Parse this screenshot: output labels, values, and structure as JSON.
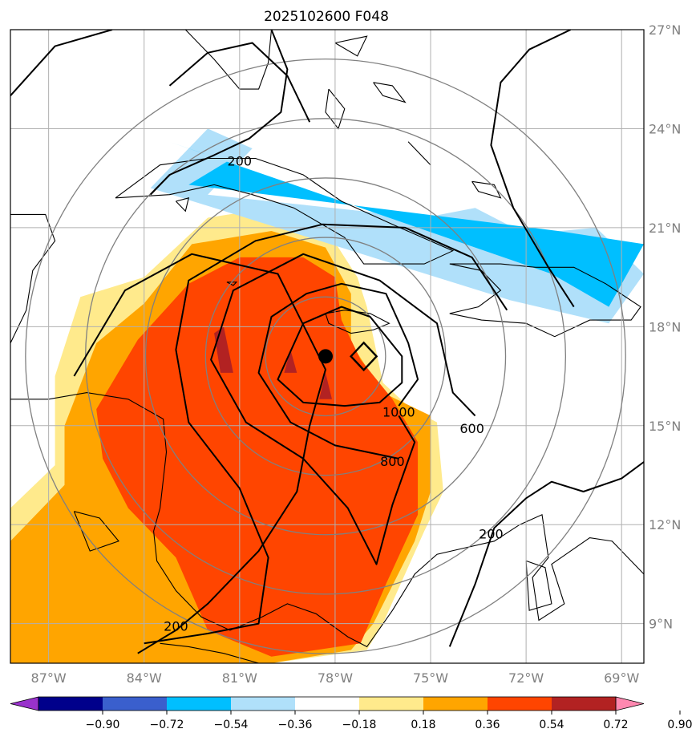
{
  "figure": {
    "title": "2025102600 F048"
  },
  "chart_data": {
    "type": "map-contour",
    "title": "2025102600 F048",
    "lon_range": [
      -88.2,
      -68.3
    ],
    "lat_range": [
      7.8,
      27.0
    ],
    "lon_ticks": [
      {
        "value": -87,
        "label": "87°W"
      },
      {
        "value": -84,
        "label": "84°W"
      },
      {
        "value": -81,
        "label": "81°W"
      },
      {
        "value": -78,
        "label": "78°W"
      },
      {
        "value": -75,
        "label": "75°W"
      },
      {
        "value": -72,
        "label": "72°W"
      },
      {
        "value": -69,
        "label": "69°W"
      }
    ],
    "lat_ticks": [
      {
        "value": 27,
        "label": "27°N"
      },
      {
        "value": 24,
        "label": "24°N"
      },
      {
        "value": 21,
        "label": "21°N"
      },
      {
        "value": 18,
        "label": "18°N"
      },
      {
        "value": 15,
        "label": "15°N"
      },
      {
        "value": 12,
        "label": "12°N"
      },
      {
        "value": 9,
        "label": "9°N"
      }
    ],
    "colorbar": {
      "levels": [
        -0.9,
        -0.72,
        -0.54,
        -0.36,
        -0.18,
        0.18,
        0.36,
        0.54,
        0.72,
        0.9
      ],
      "labels": [
        "−0.90",
        "−0.72",
        "−0.54",
        "−0.36",
        "−0.18",
        "0.18",
        "0.36",
        "0.54",
        "0.72",
        "0.90"
      ],
      "colors": [
        "#9932CC",
        "#00008B",
        "#3A5FCD",
        "#00BFFF",
        "#B0E0FA",
        "#FFFFFF",
        "#FFEA8C",
        "#FFA500",
        "#FF4500",
        "#B22222",
        "#FF88B0"
      ]
    },
    "storm_center": {
      "lon": -78.3,
      "lat": 17.1
    },
    "marker_diamond": {
      "lon": -77.1,
      "lat": 17.1
    },
    "range_rings_km": [
      200,
      400,
      600,
      800,
      1000
    ],
    "contour_labels": [
      {
        "text": "1000",
        "lon": -76.0,
        "lat": 15.4
      },
      {
        "text": "800",
        "lon": -76.2,
        "lat": 13.9
      },
      {
        "text": "600",
        "lon": -73.7,
        "lat": 14.9
      },
      {
        "text": "200",
        "lon": -73.1,
        "lat": 11.7
      },
      {
        "text": "200",
        "lon": -81.0,
        "lat": 23.0
      },
      {
        "text": "200",
        "lon": -83.0,
        "lat": 8.9
      }
    ],
    "shading": {
      "positive_outer_0_18": [
        [
          -86.8,
          16.5
        ],
        [
          -86.0,
          18.9
        ],
        [
          -84.0,
          19.5
        ],
        [
          -82.0,
          21.3
        ],
        [
          -80.0,
          21.6
        ],
        [
          -78.3,
          21.0
        ],
        [
          -77.3,
          19.5
        ],
        [
          -77.0,
          18.6
        ],
        [
          -76.5,
          16.3
        ],
        [
          -75.6,
          15.5
        ],
        [
          -74.8,
          15.1
        ],
        [
          -74.6,
          13.0
        ],
        [
          -75.2,
          11.8
        ],
        [
          -76.5,
          9.0
        ],
        [
          -77.0,
          8.2
        ],
        [
          -80.0,
          7.8
        ],
        [
          -84.0,
          7.8
        ],
        [
          -88.2,
          7.8
        ],
        [
          -88.2,
          12.5
        ],
        [
          -86.8,
          13.8
        ]
      ],
      "positive_0_36": [
        [
          -86.5,
          15.0
        ],
        [
          -85.5,
          17.5
        ],
        [
          -84.0,
          18.7
        ],
        [
          -82.5,
          20.5
        ],
        [
          -80.0,
          20.9
        ],
        [
          -78.3,
          20.4
        ],
        [
          -77.5,
          19.0
        ],
        [
          -77.5,
          17.5
        ],
        [
          -76.5,
          16.0
        ],
        [
          -75.0,
          15.3
        ],
        [
          -75.0,
          13.0
        ],
        [
          -75.5,
          11.5
        ],
        [
          -76.8,
          9.0
        ],
        [
          -77.5,
          8.2
        ],
        [
          -80.0,
          7.8
        ],
        [
          -84.0,
          7.8
        ],
        [
          -88.2,
          7.8
        ],
        [
          -88.2,
          11.5
        ],
        [
          -86.5,
          13.2
        ]
      ],
      "positive_0_54": [
        [
          -85.5,
          15.5
        ],
        [
          -84.2,
          17.6
        ],
        [
          -82.6,
          19.3
        ],
        [
          -81.0,
          20.1
        ],
        [
          -79.0,
          20.1
        ],
        [
          -78.0,
          19.5
        ],
        [
          -77.8,
          18.2
        ],
        [
          -77.2,
          17.0
        ],
        [
          -76.2,
          15.8
        ],
        [
          -75.4,
          14.5
        ],
        [
          -75.4,
          12.3
        ],
        [
          -76.4,
          10.2
        ],
        [
          -77.2,
          8.4
        ],
        [
          -80.0,
          8.0
        ],
        [
          -82.0,
          8.8
        ],
        [
          -83.0,
          11.0
        ],
        [
          -84.5,
          12.5
        ],
        [
          -85.3,
          14.0
        ]
      ],
      "positive_0_72": [
        [
          -81.5,
          18.0
        ],
        [
          -81.2,
          16.6
        ],
        [
          -81.6,
          16.6
        ],
        [
          -81.8,
          17.8
        ]
      ],
      "negative_neg_0_18": [
        [
          -83.8,
          22.2
        ],
        [
          -82.0,
          24.0
        ],
        [
          -80.6,
          23.4
        ],
        [
          -82.0,
          22.0
        ],
        [
          -75.2,
          21.3
        ],
        [
          -73.6,
          21.6
        ],
        [
          -72.0,
          20.8
        ],
        [
          -69.8,
          21.0
        ],
        [
          -68.3,
          19.6
        ],
        [
          -69.4,
          18.1
        ],
        [
          -72.5,
          18.8
        ]
      ],
      "negative_neg_0_36": [
        [
          -83.2,
          23.6
        ],
        [
          -81.4,
          23.0
        ],
        [
          -82.6,
          22.3
        ],
        [
          -71.0,
          20.9
        ],
        [
          -68.3,
          20.5
        ],
        [
          -69.4,
          18.6
        ],
        [
          -71.2,
          19.6
        ]
      ]
    }
  }
}
